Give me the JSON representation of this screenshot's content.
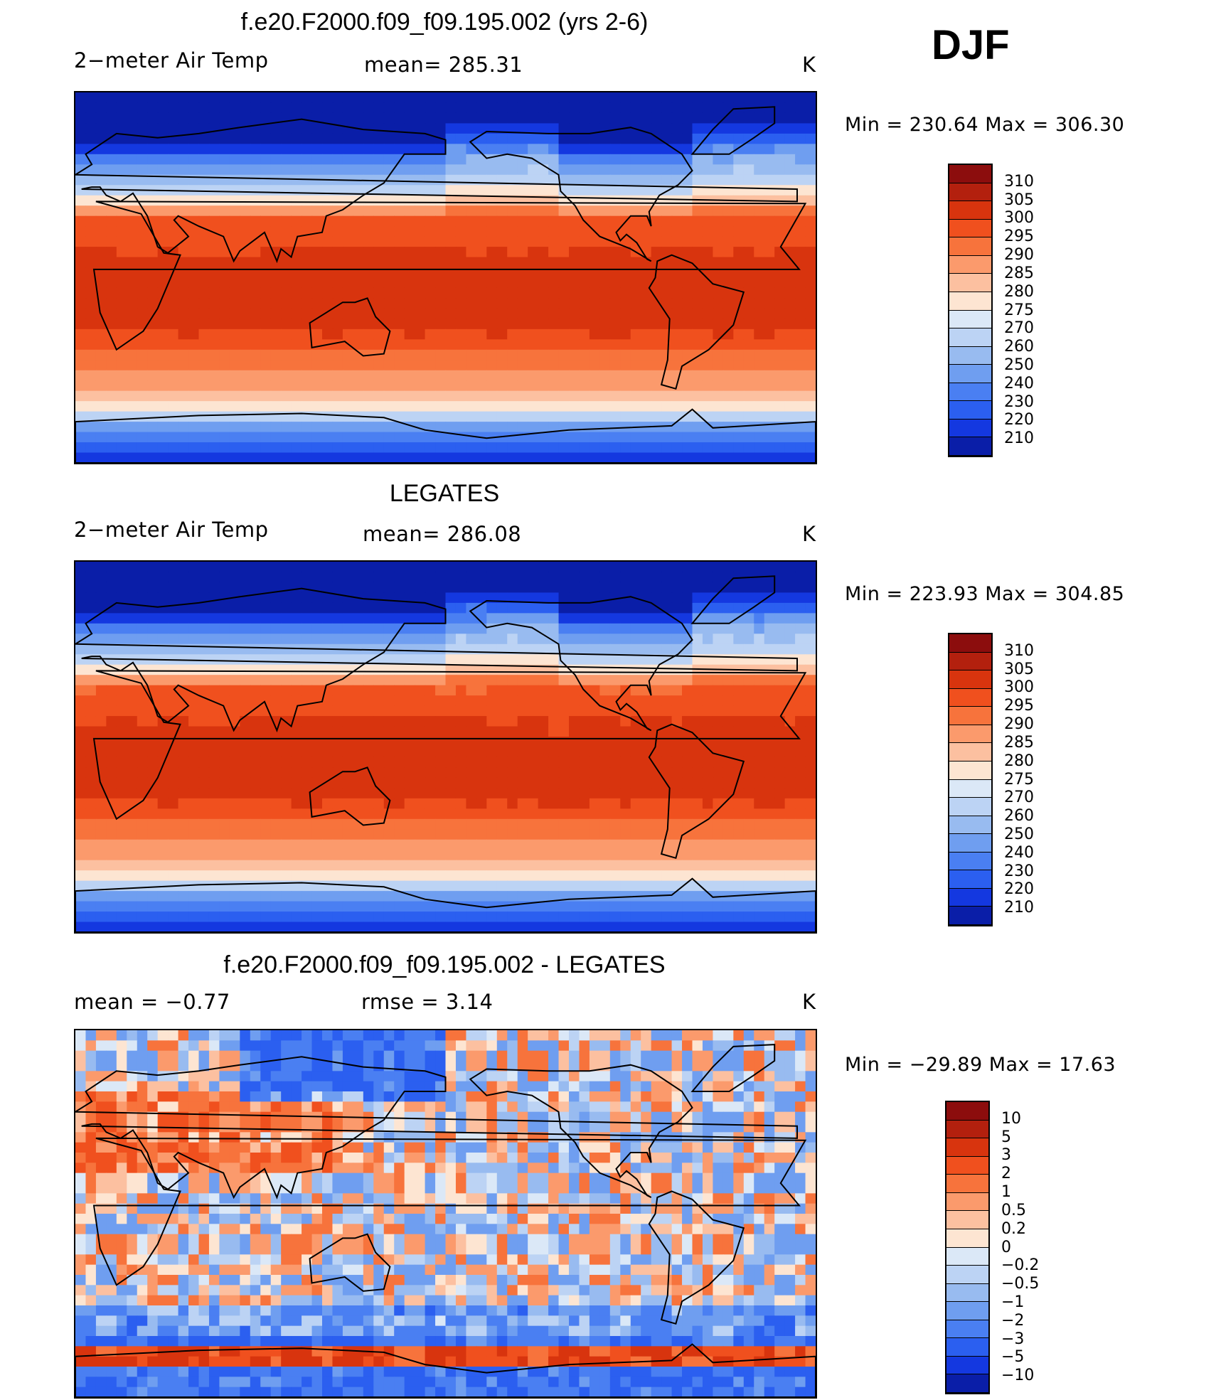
{
  "season": "DJF",
  "panels": [
    {
      "title": "f.e20.F2000.f09_f09.195.002 (yrs 2-6)",
      "left_label": "2−meter Air Temp",
      "center_label": "mean=  285.31",
      "units": "K",
      "minmax": "Min  =  230.64  Max  =  306.30",
      "colorbar_labels": [
        "310",
        "305",
        "300",
        "295",
        "290",
        "285",
        "280",
        "275",
        "270",
        "260",
        "250",
        "240",
        "230",
        "220",
        "210"
      ],
      "colorbar_colors": [
        "#8c0d0d",
        "#b3200e",
        "#d8340e",
        "#f0501e",
        "#f7733c",
        "#fb9a6c",
        "#fcc0a0",
        "#fde5d2",
        "#dbe8f7",
        "#bcd3f4",
        "#98bbf0",
        "#6f9ef0",
        "#4a7ff2",
        "#2b5ff0",
        "#1438e0",
        "#0a1ea8"
      ],
      "field": "model"
    },
    {
      "title": "LEGATES",
      "left_label": "2−meter Air Temp",
      "center_label": "mean=  286.08",
      "units": "K",
      "minmax": "Min  =  223.93  Max  =  304.85",
      "colorbar_labels": [
        "310",
        "305",
        "300",
        "295",
        "290",
        "285",
        "280",
        "275",
        "270",
        "260",
        "250",
        "240",
        "230",
        "220",
        "210"
      ],
      "colorbar_colors": [
        "#8c0d0d",
        "#b3200e",
        "#d8340e",
        "#f0501e",
        "#f7733c",
        "#fb9a6c",
        "#fcc0a0",
        "#fde5d2",
        "#dbe8f7",
        "#bcd3f4",
        "#98bbf0",
        "#6f9ef0",
        "#4a7ff2",
        "#2b5ff0",
        "#1438e0",
        "#0a1ea8"
      ],
      "field": "obs"
    },
    {
      "title": "f.e20.F2000.f09_f09.195.002 - LEGATES",
      "left_label": "mean  =    −0.77",
      "center_label": "rmse  =     3.14",
      "units": "K",
      "minmax": "Min  =  −29.89  Max  =    17.63",
      "colorbar_labels": [
        "10",
        "5",
        "3",
        "2",
        "1",
        "0.5",
        "0.2",
        "0",
        "−0.2",
        "−0.5",
        "−1",
        "−2",
        "−3",
        "−5",
        "−10"
      ],
      "colorbar_colors": [
        "#8c0d0d",
        "#b3200e",
        "#d8340e",
        "#f0501e",
        "#f7733c",
        "#fb9a6c",
        "#fcc0a0",
        "#fde5d2",
        "#dbe8f7",
        "#bcd3f4",
        "#98bbf0",
        "#6f9ef0",
        "#4a7ff2",
        "#2b5ff0",
        "#1438e0",
        "#0a1ea8"
      ],
      "field": "diff"
    }
  ]
}
